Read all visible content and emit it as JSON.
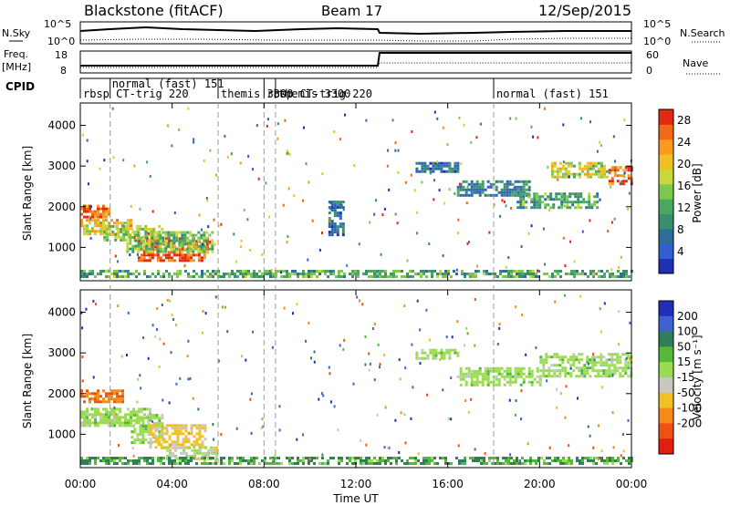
{
  "header": {
    "title": "Blackstone (fitACF)",
    "beam": "Beam 17",
    "date": "12/Sep/2015"
  },
  "status_panels": {
    "nsky_label": "N.Sky",
    "nsearch_label": "N.Search",
    "nsky_ticks": [
      "10^5",
      "10^0"
    ],
    "nsearch_ticks": [
      "10^5",
      "10^0"
    ],
    "freq_label": "Freq.",
    "freq_unit": "[MHz]",
    "freq_ticks": [
      "18",
      "8"
    ],
    "nave_label": "Nave",
    "nave_ticks": [
      "60",
      "0"
    ],
    "cpid_label": "CPID"
  },
  "cpid_segments": [
    {
      "start_hr": 0.0,
      "top": "",
      "bottom": "rbsp CT-trig 220"
    },
    {
      "start_hr": 1.3,
      "top": "normal (fast) 151",
      "bottom": ""
    },
    {
      "start_hr": 6.0,
      "top": "",
      "bottom": "themis 3300"
    },
    {
      "start_hr": 8.0,
      "top": "",
      "bottom": "rbsp CT-trig 220"
    },
    {
      "start_hr": 8.5,
      "top": "",
      "bottom": "themis 3300"
    },
    {
      "start_hr": 18.0,
      "top": "",
      "bottom": "normal (fast) 151"
    }
  ],
  "power_panel": {
    "ylabel": "Slant Range [km]",
    "colorbar_label": "Power [dB]",
    "colorbar_ticks": [
      "4",
      "8",
      "12",
      "16",
      "20",
      "24",
      "28"
    ]
  },
  "velocity_panel": {
    "ylabel": "Slant Range [km]",
    "colorbar_label": "Velocity [m s⁻¹]",
    "colorbar_ticks": [
      "200",
      "100",
      "50",
      "15",
      "-15",
      "-50",
      "-100",
      "-200"
    ]
  },
  "xaxis": {
    "label": "Time UT",
    "ticks": [
      "00:00",
      "04:00",
      "08:00",
      "12:00",
      "16:00",
      "20:00",
      "00:00"
    ]
  },
  "chart_data": [
    {
      "type": "heatmap",
      "title": "",
      "xlabel": "Time UT",
      "ylabel": "Slant Range [km]",
      "xlim": [
        0,
        24
      ],
      "ylim": [
        180,
        4550
      ],
      "yticks": [
        1000,
        2000,
        3000,
        4000
      ],
      "colorbar": {
        "label": "Power [dB]",
        "range": [
          0,
          30
        ],
        "ticks": [
          4,
          8,
          12,
          16,
          20,
          24,
          28
        ]
      },
      "regions": [
        {
          "t": [
            0.0,
            1.3
          ],
          "r": [
            1750,
            2050
          ],
          "value": 26
        },
        {
          "t": [
            0.0,
            2.2
          ],
          "r": [
            1300,
            1700
          ],
          "value": 20
        },
        {
          "t": [
            1.0,
            3.6
          ],
          "r": [
            1150,
            1550
          ],
          "value": 16
        },
        {
          "t": [
            2.5,
            5.5
          ],
          "r": [
            700,
            1250
          ],
          "value": 27
        },
        {
          "t": [
            2.0,
            5.8
          ],
          "r": [
            900,
            1400
          ],
          "value": 14
        },
        {
          "t": [
            0.0,
            24.0
          ],
          "r": [
            250,
            450
          ],
          "value": 12
        },
        {
          "t": [
            14.6,
            16.4
          ],
          "r": [
            2850,
            3100
          ],
          "value": 6
        },
        {
          "t": [
            16.4,
            19.5
          ],
          "r": [
            2300,
            2650
          ],
          "value": 8
        },
        {
          "t": [
            19.0,
            22.5
          ],
          "r": [
            1950,
            2350
          ],
          "value": 12
        },
        {
          "t": [
            20.5,
            23.0
          ],
          "r": [
            2700,
            3100
          ],
          "value": 18
        },
        {
          "t": [
            23.0,
            24.0
          ],
          "r": [
            2550,
            3000
          ],
          "value": 26
        },
        {
          "t": [
            10.8,
            11.5
          ],
          "r": [
            1300,
            2150
          ],
          "value": 6
        }
      ]
    },
    {
      "type": "heatmap",
      "title": "",
      "xlabel": "Time UT",
      "ylabel": "Slant Range [km]",
      "xlim": [
        0,
        24
      ],
      "ylim": [
        180,
        4550
      ],
      "yticks": [
        1000,
        2000,
        3000,
        4000
      ],
      "colorbar": {
        "label": "Velocity [m s⁻¹]",
        "ticks": [
          200,
          100,
          50,
          15,
          -15,
          -50,
          -100,
          -200
        ]
      },
      "regions": [
        {
          "t": [
            0.0,
            1.8
          ],
          "r": [
            1800,
            2100
          ],
          "value": -150
        },
        {
          "t": [
            0.0,
            3.0
          ],
          "r": [
            1200,
            1650
          ],
          "value": 0
        },
        {
          "t": [
            2.2,
            3.6
          ],
          "r": [
            800,
            1500
          ],
          "value": 0
        },
        {
          "t": [
            3.0,
            5.5
          ],
          "r": [
            650,
            1250
          ],
          "value": -40
        },
        {
          "t": [
            3.5,
            6.0
          ],
          "r": [
            400,
            700
          ],
          "value": -20
        },
        {
          "t": [
            0.0,
            24.0
          ],
          "r": [
            250,
            450
          ],
          "value": 30
        },
        {
          "t": [
            14.6,
            16.4
          ],
          "r": [
            2850,
            3100
          ],
          "value": 0
        },
        {
          "t": [
            16.4,
            20.0
          ],
          "r": [
            2200,
            2650
          ],
          "value": 0
        },
        {
          "t": [
            20.0,
            24.0
          ],
          "r": [
            2400,
            3000
          ],
          "value": 0
        }
      ]
    }
  ]
}
